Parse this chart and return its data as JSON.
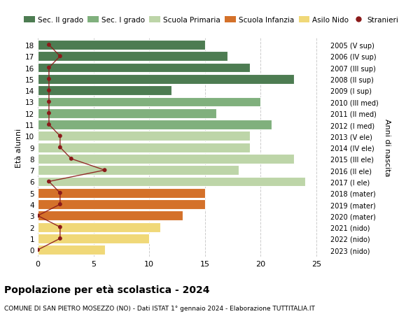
{
  "ages": [
    18,
    17,
    16,
    15,
    14,
    13,
    12,
    11,
    10,
    9,
    8,
    7,
    6,
    5,
    4,
    3,
    2,
    1,
    0
  ],
  "right_labels": [
    "2005 (V sup)",
    "2006 (IV sup)",
    "2007 (III sup)",
    "2008 (II sup)",
    "2009 (I sup)",
    "2010 (III med)",
    "2011 (II med)",
    "2012 (I med)",
    "2013 (V ele)",
    "2014 (IV ele)",
    "2015 (III ele)",
    "2016 (II ele)",
    "2017 (I ele)",
    "2018 (mater)",
    "2019 (mater)",
    "2020 (mater)",
    "2021 (nido)",
    "2022 (nido)",
    "2023 (nido)"
  ],
  "bar_values": [
    15,
    17,
    19,
    23,
    12,
    20,
    16,
    21,
    19,
    19,
    23,
    18,
    24,
    15,
    15,
    13,
    11,
    10,
    6
  ],
  "bar_colors": [
    "#4d7c52",
    "#4d7c52",
    "#4d7c52",
    "#4d7c52",
    "#4d7c52",
    "#80b07d",
    "#80b07d",
    "#80b07d",
    "#bdd5a8",
    "#bdd5a8",
    "#bdd5a8",
    "#bdd5a8",
    "#bdd5a8",
    "#d4712a",
    "#d4712a",
    "#d4712a",
    "#f0d878",
    "#f0d878",
    "#f0d878"
  ],
  "stranieri_values": [
    1,
    2,
    1,
    1,
    1,
    1,
    1,
    1,
    2,
    2,
    3,
    6,
    1,
    2,
    2,
    0,
    2,
    2,
    0
  ],
  "stranieri_color": "#8b1a1a",
  "title": "Popolazione per età scolastica - 2024",
  "subtitle": "COMUNE DI SAN PIETRO MOSEZZO (NO) - Dati ISTAT 1° gennaio 2024 - Elaborazione TUTTITALIA.IT",
  "ylabel": "Età alunni",
  "right_ylabel": "Anni di nascita",
  "xlim": [
    0,
    26
  ],
  "xticks": [
    0,
    5,
    10,
    15,
    20,
    25
  ],
  "legend_items": [
    {
      "label": "Sec. II grado",
      "color": "#4d7c52"
    },
    {
      "label": "Sec. I grado",
      "color": "#80b07d"
    },
    {
      "label": "Scuola Primaria",
      "color": "#bdd5a8"
    },
    {
      "label": "Scuola Infanzia",
      "color": "#d4712a"
    },
    {
      "label": "Asilo Nido",
      "color": "#f0d878"
    },
    {
      "label": "Stranieri",
      "color": "#8b1a1a"
    }
  ],
  "bg_color": "#ffffff",
  "grid_color": "#cccccc"
}
